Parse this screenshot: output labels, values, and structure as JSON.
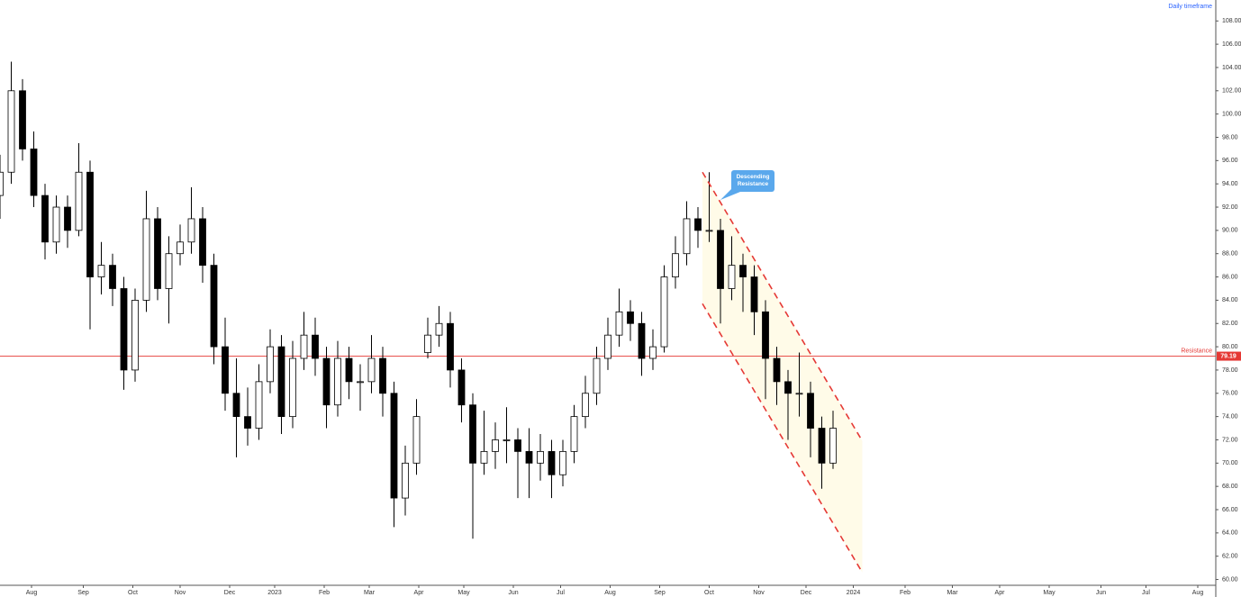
{
  "chart_data": {
    "type": "candlestick",
    "timeframe": "Daily timeframe",
    "callout": "Descending Resistance",
    "resistance": {
      "label": "Resistance",
      "value": 79.19
    },
    "channel": {
      "x": [
        298,
        369
      ],
      "upper": [
        95,
        71.9
      ],
      "lower": [
        83.7,
        60.6
      ]
    },
    "x": [
      -14,
      -9,
      -4,
      1,
      6,
      11,
      16,
      21,
      26,
      31,
      36,
      41,
      46,
      51,
      56,
      61,
      66,
      71,
      76,
      81,
      86,
      91,
      96,
      101,
      106,
      111,
      116,
      121,
      126,
      131,
      136,
      141,
      146,
      151,
      156,
      161,
      166,
      171,
      176,
      181,
      186,
      191,
      196,
      201,
      206,
      211,
      216,
      221,
      226,
      231,
      236,
      241,
      246,
      251,
      256,
      261,
      266,
      271,
      276,
      281,
      286,
      291,
      296,
      301,
      306,
      311,
      316,
      321,
      326,
      331,
      336,
      341,
      346,
      351,
      356
    ],
    "open": [
      93,
      95,
      102,
      97,
      93,
      89,
      92,
      90,
      95,
      86,
      87,
      85,
      78,
      84,
      91,
      85,
      88,
      89,
      91,
      87,
      80,
      76,
      74,
      73,
      77,
      80,
      74,
      79,
      81,
      79,
      75,
      79,
      77,
      77,
      79,
      76,
      67,
      70,
      79.5,
      81,
      82,
      78,
      75,
      70,
      71,
      72,
      72,
      71,
      70,
      71,
      69,
      71,
      74,
      76,
      79,
      81,
      83,
      82,
      79,
      80,
      86,
      88,
      91,
      90,
      90,
      85,
      87,
      86,
      83,
      79,
      77,
      76,
      76,
      73,
      70
    ],
    "high": [
      96.5,
      104.5,
      103,
      98.5,
      94,
      93,
      93,
      97.5,
      96,
      89,
      88,
      86,
      85,
      93.4,
      92,
      89.5,
      90.5,
      93.7,
      92,
      88,
      82.5,
      79,
      76.5,
      78.5,
      81.5,
      81,
      80.5,
      83,
      82.5,
      80,
      80.5,
      80,
      78.5,
      81,
      80,
      77,
      71.5,
      75.5,
      82.5,
      83.5,
      83,
      79,
      76,
      74.5,
      73.5,
      74.8,
      73,
      73,
      72.5,
      72,
      72,
      75,
      77.5,
      80,
      82.5,
      85,
      84,
      83,
      81.5,
      87,
      89.5,
      92.5,
      92,
      95,
      91,
      89.5,
      88,
      87,
      84,
      80,
      78,
      79.5,
      77,
      74,
      74.5
    ],
    "low": [
      91,
      94,
      96,
      92,
      87.5,
      88,
      88.5,
      89.5,
      81.5,
      84.5,
      83.5,
      76.3,
      77,
      83,
      84,
      82,
      87,
      88,
      85.5,
      78.5,
      74.5,
      70.5,
      71.5,
      72,
      76,
      72.5,
      73,
      78,
      77.5,
      73,
      74,
      75.5,
      74.5,
      76,
      74,
      64.5,
      65.5,
      69,
      79,
      80,
      76.5,
      73.5,
      63.5,
      69,
      69.5,
      70,
      67,
      67,
      68.5,
      67,
      68,
      70,
      73,
      75,
      78,
      80,
      80.5,
      77.5,
      78,
      79.5,
      85,
      87,
      88.5,
      89,
      82,
      84,
      83,
      81,
      75.5,
      75,
      72,
      74,
      70.5,
      67.8,
      69.5
    ],
    "close": [
      95,
      102,
      97,
      93,
      89,
      92,
      90,
      95,
      86,
      87,
      85,
      78,
      84,
      91,
      85,
      88,
      89,
      91,
      87,
      80,
      76,
      74,
      73,
      77,
      80,
      74,
      79,
      81,
      79,
      75,
      79,
      77,
      77,
      79,
      76,
      67,
      70,
      74,
      81,
      82,
      78,
      75,
      70,
      71,
      72,
      72,
      71,
      70,
      71,
      69,
      71,
      74,
      76,
      79,
      81,
      83,
      82,
      79,
      80,
      86,
      88,
      91,
      90,
      90,
      85,
      87,
      86,
      83,
      79,
      77,
      76,
      76,
      73,
      70,
      73
    ],
    "xlim": [
      -14,
      526
    ],
    "xticks": [
      {
        "value": 0,
        "label": "Aug"
      },
      {
        "value": 23,
        "label": "Sep"
      },
      {
        "value": 45,
        "label": "Oct"
      },
      {
        "value": 66,
        "label": "Nov"
      },
      {
        "value": 88,
        "label": "Dec"
      },
      {
        "value": 108,
        "label": "2023"
      },
      {
        "value": 130,
        "label": "Feb"
      },
      {
        "value": 150,
        "label": "Mar"
      },
      {
        "value": 172,
        "label": "Apr"
      },
      {
        "value": 192,
        "label": "May"
      },
      {
        "value": 214,
        "label": "Jun"
      },
      {
        "value": 235,
        "label": "Jul"
      },
      {
        "value": 257,
        "label": "Aug"
      },
      {
        "value": 279,
        "label": "Sep"
      },
      {
        "value": 301,
        "label": "Oct"
      },
      {
        "value": 323,
        "label": "Nov"
      },
      {
        "value": 344,
        "label": "Dec"
      },
      {
        "value": 365,
        "label": "2024"
      },
      {
        "value": 388,
        "label": "Feb"
      },
      {
        "value": 409,
        "label": "Mar"
      },
      {
        "value": 430,
        "label": "Apr"
      },
      {
        "value": 452,
        "label": "May"
      },
      {
        "value": 475,
        "label": "Jun"
      },
      {
        "value": 495,
        "label": "Jul"
      },
      {
        "value": 518,
        "label": "Aug"
      }
    ],
    "ylim": [
      59.5,
      109.8
    ],
    "yticks": [
      {
        "value": 60,
        "label": "60.00"
      },
      {
        "value": 62,
        "label": "62.00"
      },
      {
        "value": 64,
        "label": "64.00"
      },
      {
        "value": 66,
        "label": "66.00"
      },
      {
        "value": 68,
        "label": "68.00"
      },
      {
        "value": 70,
        "label": "70.00"
      },
      {
        "value": 72,
        "label": "72.00"
      },
      {
        "value": 74,
        "label": "74.00"
      },
      {
        "value": 76,
        "label": "76.00"
      },
      {
        "value": 78,
        "label": "78.00"
      },
      {
        "value": 80,
        "label": "80.00"
      },
      {
        "value": 82,
        "label": "82.00"
      },
      {
        "value": 84,
        "label": "84.00"
      },
      {
        "value": 86,
        "label": "86.00"
      },
      {
        "value": 88,
        "label": "88.00"
      },
      {
        "value": 90,
        "label": "90.00"
      },
      {
        "value": 92,
        "label": "92.00"
      },
      {
        "value": 94,
        "label": "94.00"
      },
      {
        "value": 96,
        "label": "96.00"
      },
      {
        "value": 98,
        "label": "98.00"
      },
      {
        "value": 100,
        "label": "100.00"
      },
      {
        "value": 102,
        "label": "102.00"
      },
      {
        "value": 104,
        "label": "104.00"
      },
      {
        "value": 106,
        "label": "106.00"
      },
      {
        "value": 108,
        "label": "108.00"
      }
    ],
    "up_color": "#ffffff",
    "down_color": "#000000",
    "line_color": "#e53935",
    "channel_fill": "#fffbe8",
    "grid": false
  }
}
